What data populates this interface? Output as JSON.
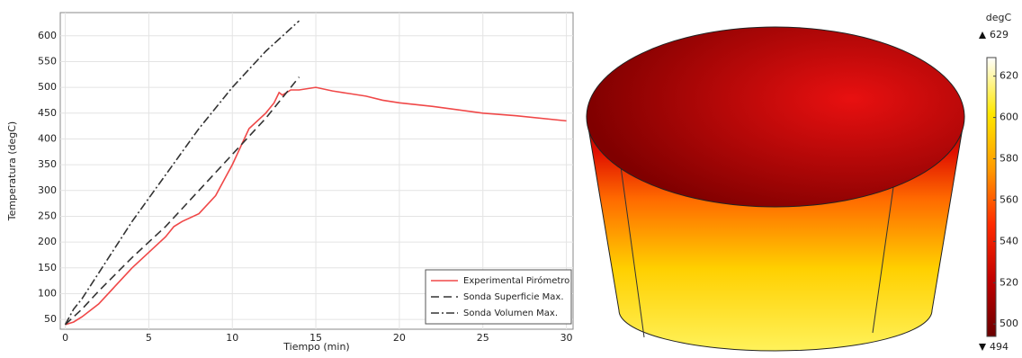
{
  "chart_data": [
    {
      "type": "line",
      "xlabel": "Tiempo (min)",
      "ylabel": "Temperatura (degC)",
      "xlim": [
        -0.3,
        30.4
      ],
      "ylim": [
        31,
        645
      ],
      "xticks": [
        0,
        5,
        10,
        15,
        20,
        25,
        30
      ],
      "yticks": [
        50,
        100,
        150,
        200,
        250,
        300,
        350,
        400,
        450,
        500,
        550,
        600
      ],
      "grid": true,
      "legend": "lower right",
      "series": [
        {
          "name": "Experimental Pirómetro",
          "color": "#f04848",
          "dash": "solid",
          "x": [
            0,
            0.5,
            1,
            2,
            3,
            4,
            5,
            6,
            6.5,
            7,
            8,
            9,
            10,
            11,
            12,
            12.5,
            12.8,
            13,
            13.5,
            14,
            15,
            16,
            17,
            18,
            19,
            20,
            22,
            25,
            27,
            30
          ],
          "values": [
            40,
            45,
            55,
            80,
            115,
            150,
            180,
            210,
            230,
            240,
            255,
            290,
            350,
            420,
            450,
            470,
            490,
            485,
            495,
            495,
            500,
            493,
            488,
            483,
            475,
            470,
            463,
            450,
            445,
            435
          ]
        },
        {
          "name": "Sonda Superficie Max.",
          "color": "#333333",
          "dash": "dashed",
          "x": [
            0,
            1,
            2,
            4,
            6,
            8,
            10,
            12,
            13,
            14
          ],
          "values": [
            40,
            70,
            105,
            170,
            230,
            300,
            370,
            440,
            480,
            520
          ]
        },
        {
          "name": "Sonda Volumen Max.",
          "color": "#333333",
          "dash": "dashdot",
          "x": [
            0,
            0.5,
            1,
            2,
            4,
            6,
            8,
            10,
            12,
            14
          ],
          "values": [
            40,
            70,
            90,
            140,
            240,
            330,
            420,
            500,
            570,
            629
          ]
        }
      ]
    },
    {
      "type": "colorbar",
      "unit": "degC",
      "ylim": [
        494,
        629
      ],
      "max": 629,
      "min": 494,
      "yticks": [
        500,
        520,
        540,
        560,
        580,
        600,
        620
      ],
      "colors": [
        "#6a0000",
        "#c00000",
        "#ff2a00",
        "#ff9a00",
        "#ffe800",
        "#ffffff"
      ]
    }
  ]
}
